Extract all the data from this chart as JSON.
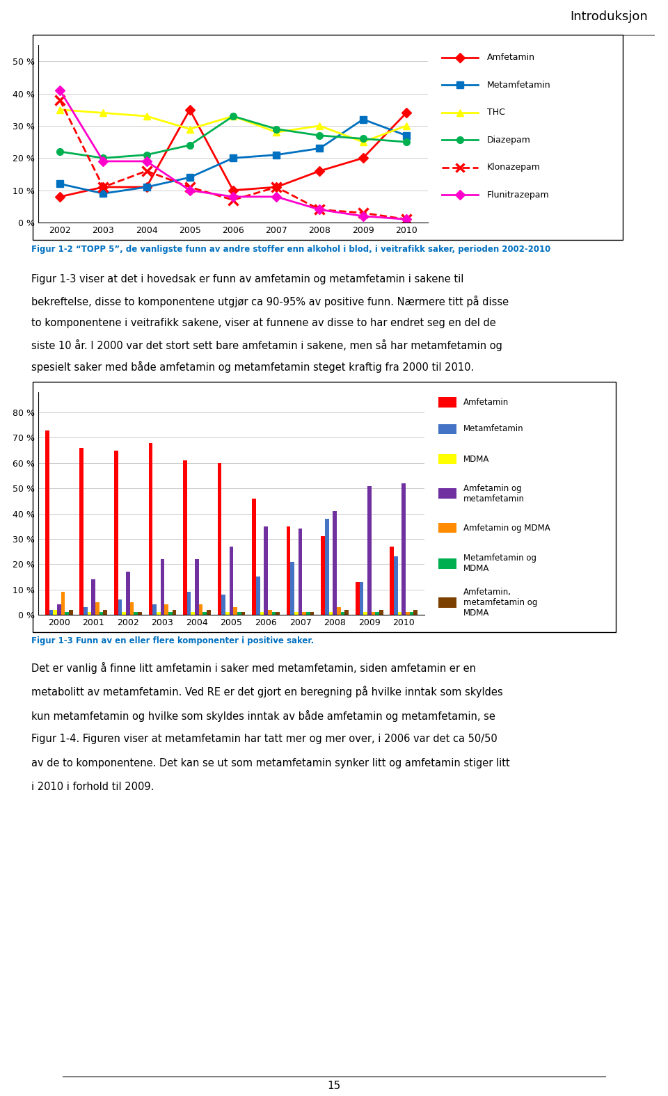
{
  "line_chart": {
    "years": [
      2002,
      2003,
      2004,
      2005,
      2006,
      2007,
      2008,
      2009,
      2010
    ],
    "series": {
      "Amfetamin": [
        0.08,
        0.11,
        0.11,
        0.35,
        0.1,
        0.11,
        0.16,
        0.2,
        0.34
      ],
      "Metamfetamin": [
        0.12,
        0.09,
        0.11,
        0.14,
        0.2,
        0.21,
        0.23,
        0.32,
        0.27
      ],
      "THC": [
        0.35,
        0.34,
        0.33,
        0.29,
        0.33,
        0.28,
        0.3,
        0.25,
        0.3
      ],
      "Diazepam": [
        0.22,
        0.2,
        0.21,
        0.24,
        0.33,
        0.29,
        0.27,
        0.26,
        0.25
      ],
      "Klonazepam": [
        0.38,
        0.11,
        0.16,
        0.11,
        0.07,
        0.11,
        0.04,
        0.03,
        0.01
      ],
      "Flunitrazepam": [
        0.41,
        0.19,
        0.19,
        0.1,
        0.08,
        0.08,
        0.04,
        0.02,
        0.01
      ]
    },
    "colors": {
      "Amfetamin": "#FF0000",
      "Metamfetamin": "#0070C0",
      "THC": "#FFFF00",
      "Diazepam": "#00B050",
      "Klonazepam": "#FF0000",
      "Flunitrazepam": "#FF00CC"
    },
    "markers": {
      "Amfetamin": "D",
      "Metamfetamin": "s",
      "THC": "^",
      "Diazepam": "o",
      "Klonazepam": "x",
      "Flunitrazepam": "D"
    },
    "line_styles": {
      "Amfetamin": "-",
      "Metamfetamin": "-",
      "THC": "-",
      "Diazepam": "-",
      "Klonazepam": "--",
      "Flunitrazepam": "-"
    },
    "ylim": [
      0,
      0.55
    ],
    "yticks": [
      0.0,
      0.1,
      0.2,
      0.3,
      0.4,
      0.5
    ],
    "ytick_labels": [
      "0 %",
      "10 %",
      "20 %",
      "30 %",
      "40 %",
      "50 %"
    ]
  },
  "bar_chart": {
    "years": [
      2000,
      2001,
      2002,
      2003,
      2004,
      2005,
      2006,
      2007,
      2008,
      2009,
      2010
    ],
    "series": {
      "Amfetamin": [
        0.73,
        0.66,
        0.65,
        0.68,
        0.61,
        0.6,
        0.46,
        0.35,
        0.31,
        0.13,
        0.27
      ],
      "Metamfetamin": [
        0.02,
        0.03,
        0.06,
        0.04,
        0.09,
        0.08,
        0.15,
        0.21,
        0.38,
        0.13,
        0.23
      ],
      "MDMA": [
        0.02,
        0.01,
        0.01,
        0.01,
        0.01,
        0.01,
        0.01,
        0.01,
        0.01,
        0.01,
        0.01
      ],
      "Amfetamin og metamfetamin": [
        0.04,
        0.14,
        0.17,
        0.22,
        0.22,
        0.27,
        0.35,
        0.34,
        0.41,
        0.51,
        0.52
      ],
      "Amfetamin og MDMA": [
        0.09,
        0.05,
        0.05,
        0.04,
        0.04,
        0.03,
        0.02,
        0.01,
        0.03,
        0.01,
        0.01
      ],
      "Metamfetamin og MDMA": [
        0.01,
        0.01,
        0.01,
        0.01,
        0.01,
        0.01,
        0.01,
        0.01,
        0.01,
        0.01,
        0.01
      ],
      "Amfetamin, metamfetamin og MDMA": [
        0.02,
        0.02,
        0.01,
        0.02,
        0.02,
        0.01,
        0.01,
        0.01,
        0.02,
        0.02,
        0.02
      ]
    },
    "colors": {
      "Amfetamin": "#FF0000",
      "Metamfetamin": "#4472C4",
      "MDMA": "#FFFF00",
      "Amfetamin og metamfetamin": "#7030A0",
      "Amfetamin og MDMA": "#FF8C00",
      "Metamfetamin og MDMA": "#00B050",
      "Amfetamin, metamfetamin og MDMA": "#7B3F00"
    },
    "ylim": [
      0,
      0.88
    ],
    "yticks": [
      0.0,
      0.1,
      0.2,
      0.3,
      0.4,
      0.5,
      0.6,
      0.7,
      0.8
    ],
    "ytick_labels": [
      "0 %",
      "10 %",
      "20 %",
      "30 %",
      "40 %",
      "50 %",
      "60 %",
      "70 %",
      "80 %"
    ]
  },
  "fig_caption1": "Figur 1-2 “TOPP 5”, de vanligste funn av andre stoffer enn alkohol i blod, i veitrafikk saker, perioden 2002-2010",
  "fig_caption2": "Figur 1-3 Funn av en eller flere komponenter i positive saker.",
  "page_header": "Introduksjon",
  "page_number": "15",
  "body_text1_lines": [
    "Figur 1-3 viser at det i hovedsak er funn av amfetamin og metamfetamin i sakene til",
    "bekreftelse, disse to komponentene utgjør ca 90-95% av positive funn. Nærmere titt på disse",
    "to komponentene i veitrafikk sakene, viser at funnene av disse to har endret seg en del de",
    "siste 10 år. I 2000 var det stort sett bare amfetamin i sakene, men så har metamfetamin og",
    "spesielt saker med både amfetamin og metamfetamin steget kraftig fra 2000 til 2010."
  ],
  "body_text2_lines": [
    "Det er vanlig å finne litt amfetamin i saker med metamfetamin, siden amfetamin er en",
    "metabolitt av metamfetamin. Ved RE er det gjort en beregning på hvilke inntak som skyldes",
    "kun metamfetamin og hvilke som skyldes inntak av både amfetamin og metamfetamin, se",
    "Figur 1-4. Figuren viser at metamfetamin har tatt mer og mer over, i 2006 var det ca 50/50",
    "av de to komponentene. Det kan se ut som metamfetamin synker litt og amfetamin stiger litt",
    "i 2010 i forhold til 2009."
  ]
}
